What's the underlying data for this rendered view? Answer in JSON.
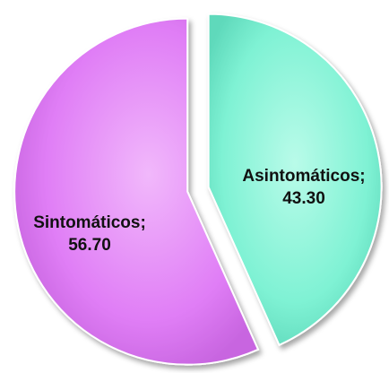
{
  "chart_data": {
    "type": "pie",
    "exploded": true,
    "legend": "none",
    "slices": [
      {
        "name": "Asintomáticos",
        "value": 43.3,
        "label": "Asintomáticos;",
        "value_label": "43.30",
        "color": "#7ff2d4"
      },
      {
        "name": "Sintomáticos",
        "value": 56.7,
        "label": "Sintomáticos;",
        "value_label": "56.70",
        "color": "#e07ef6"
      }
    ]
  }
}
